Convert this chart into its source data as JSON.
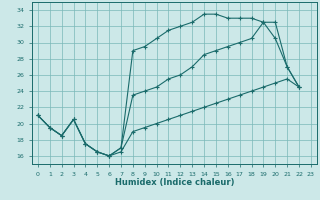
{
  "xlabel": "Humidex (Indice chaleur)",
  "bg_color": "#cce8e8",
  "grid_color": "#7ab8b8",
  "line_color": "#1a6b6b",
  "xlim": [
    -0.5,
    23.5
  ],
  "ylim": [
    15.0,
    35.0
  ],
  "xticks": [
    0,
    1,
    2,
    3,
    4,
    5,
    6,
    7,
    8,
    9,
    10,
    11,
    12,
    13,
    14,
    15,
    16,
    17,
    18,
    19,
    20,
    21,
    22,
    23
  ],
  "yticks": [
    16,
    18,
    20,
    22,
    24,
    26,
    28,
    30,
    32,
    34
  ],
  "line1_x": [
    0,
    1,
    2,
    3,
    4,
    5,
    6,
    7,
    8,
    9,
    10,
    11,
    12,
    13,
    14,
    15,
    16,
    17,
    18,
    19,
    20,
    21,
    22
  ],
  "line1_y": [
    21.0,
    19.5,
    18.5,
    20.5,
    17.5,
    16.5,
    16.0,
    17.0,
    29.0,
    29.5,
    30.5,
    31.5,
    32.0,
    32.5,
    33.5,
    33.5,
    33.0,
    33.0,
    33.0,
    32.5,
    30.5,
    27.0,
    24.5
  ],
  "line2_x": [
    0,
    1,
    2,
    3,
    4,
    5,
    6,
    7,
    8,
    9,
    10,
    11,
    12,
    13,
    14,
    15,
    16,
    17,
    18,
    19,
    20,
    21,
    22
  ],
  "line2_y": [
    21.0,
    19.5,
    18.5,
    20.5,
    17.5,
    16.5,
    16.0,
    17.0,
    23.5,
    24.0,
    24.5,
    25.5,
    26.0,
    27.0,
    28.5,
    29.0,
    29.5,
    30.0,
    30.5,
    32.5,
    32.5,
    27.0,
    24.5
  ],
  "line3_x": [
    0,
    1,
    2,
    3,
    4,
    5,
    6,
    7,
    8,
    9,
    10,
    11,
    12,
    13,
    14,
    15,
    16,
    17,
    18,
    19,
    20,
    21,
    22
  ],
  "line3_y": [
    21.0,
    19.5,
    18.5,
    20.5,
    17.5,
    16.5,
    16.0,
    16.5,
    19.0,
    19.5,
    20.0,
    20.5,
    21.0,
    21.5,
    22.0,
    22.5,
    23.0,
    23.5,
    24.0,
    24.5,
    25.0,
    25.5,
    24.5
  ]
}
